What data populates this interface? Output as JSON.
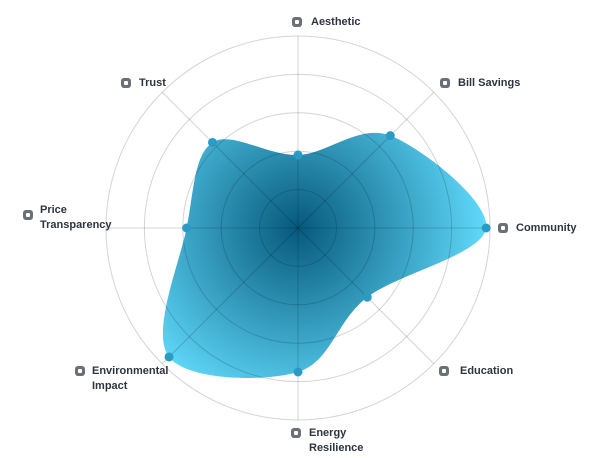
{
  "chart_data": {
    "type": "radar",
    "categories": [
      "Aesthetic",
      "Bill Savings",
      "Community",
      "Education",
      "Energy Resilience",
      "Environmental Impact",
      "Price Transparency",
      "Trust"
    ],
    "values": [
      38,
      68,
      98,
      51,
      75,
      95,
      58,
      63
    ],
    "rlim": [
      0,
      100
    ],
    "rticks": [
      20,
      40,
      60,
      80,
      100
    ],
    "color": "#2a9cc4",
    "fill_inner": "#06597c",
    "fill_outer": "#62dcfd",
    "grid": true
  }
}
